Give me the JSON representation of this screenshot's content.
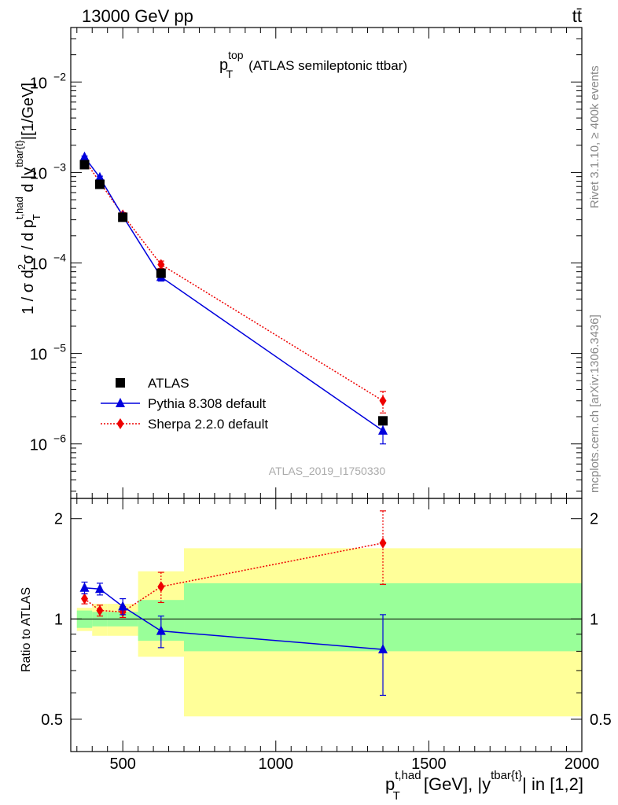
{
  "header": {
    "left": "13000 GeV pp",
    "right": "tt̄"
  },
  "plot_title": {
    "main": "p",
    "sup": "top",
    "sub": "T",
    "rest": "(ATLAS semileptonic ttbar)"
  },
  "side_labels": {
    "rivet": "Rivet 3.1.10, ≥ 400k events",
    "mcplots": "mcplots.cern.ch [arXiv:1306.3436]"
  },
  "watermark": "ATLAS_2019_I1750330",
  "y_axis_top": {
    "p1": "1 / σ d",
    "p1sup": "2",
    "p2": "σ / d p",
    "p2sup": "t,had",
    "p2sub": "T",
    "p3": " d |y",
    "p3sup": "tbar{t}",
    "p4": "|[1/GeV]"
  },
  "y_axis_bottom": "Ratio to ATLAS",
  "x_axis": {
    "p1": "p",
    "p1sup": "t,had",
    "p1sub": "T",
    "p2": " [GeV], |y",
    "p2sup": "tbar{t}",
    "p3": "| in [1,2]"
  },
  "colors": {
    "data": "#000000",
    "pythia": "#0000dd",
    "sherpa": "#ee0000",
    "band_inner": "#99ff99",
    "band_outer": "#ffff99"
  },
  "chart_data": {
    "type": "line",
    "xlim": [
      330,
      2000
    ],
    "ylim_main": [
      2.5e-07,
      0.04
    ],
    "y_scale_main": "log",
    "ylim_ratio": [
      0.4,
      2.3
    ],
    "y_scale_ratio": "log",
    "x_ticks": [
      500,
      1000,
      1500,
      2000
    ],
    "x_tick_labels": [
      "500",
      "1000",
      "1500",
      "2000"
    ],
    "y_ticks_main": [
      1e-06,
      1e-05,
      0.0001,
      0.001,
      0.01
    ],
    "y_tick_labels_main": {
      "base": [
        "10",
        "10",
        "10",
        "10",
        "10"
      ],
      "exp": [
        "−6",
        "−5",
        "−4",
        "−3",
        "−2"
      ]
    },
    "y_ticks_ratio": [
      0.5,
      1,
      2
    ],
    "y_tick_labels_ratio": [
      "0.5",
      "1",
      "2"
    ],
    "bin_edges": [
      350,
      400,
      450,
      550,
      700,
      2000
    ],
    "legend": [
      "ATLAS",
      "Pythia 8.308 default",
      "Sherpa 2.2.0 default"
    ],
    "legend_position": "lower-left",
    "series": [
      {
        "name": "ATLAS",
        "x": [
          375,
          425,
          500,
          625,
          1350
        ],
        "y": [
          0.00122,
          0.00074,
          0.00032,
          7.7e-05,
          1.8e-06
        ]
      },
      {
        "name": "Pythia 8.308 default",
        "x": [
          375,
          425,
          500,
          625,
          1350
        ],
        "y": [
          0.00148,
          0.00088,
          0.00033,
          7e-05,
          1.4e-06
        ],
        "yerr": [
          4e-05,
          3e-05,
          1e-05,
          7e-06,
          4e-07
        ]
      },
      {
        "name": "Sherpa 2.2.0 default",
        "x": [
          375,
          425,
          500,
          625,
          1350
        ],
        "y": [
          0.00138,
          0.00078,
          0.00034,
          9.6e-05,
          3e-06
        ],
        "yerr": [
          4e-05,
          3e-05,
          2e-05,
          9e-06,
          8e-07
        ]
      }
    ],
    "ratio": {
      "band_inner": [
        {
          "x0": 350,
          "x1": 400,
          "lo": 0.94,
          "hi": 1.06
        },
        {
          "x0": 400,
          "x1": 450,
          "lo": 0.95,
          "hi": 1.05
        },
        {
          "x0": 450,
          "x1": 550,
          "lo": 0.95,
          "hi": 1.05
        },
        {
          "x0": 550,
          "x1": 700,
          "lo": 0.86,
          "hi": 1.14
        },
        {
          "x0": 700,
          "x1": 2000,
          "lo": 0.8,
          "hi": 1.28
        }
      ],
      "band_outer": [
        {
          "x0": 350,
          "x1": 400,
          "lo": 0.92,
          "hi": 1.08
        },
        {
          "x0": 400,
          "x1": 450,
          "lo": 0.89,
          "hi": 1.11
        },
        {
          "x0": 450,
          "x1": 550,
          "lo": 0.89,
          "hi": 1.11
        },
        {
          "x0": 550,
          "x1": 700,
          "lo": 0.77,
          "hi": 1.39
        },
        {
          "x0": 700,
          "x1": 2000,
          "lo": 0.51,
          "hi": 1.63
        }
      ],
      "series": [
        {
          "name": "Pythia 8.308 default",
          "x": [
            375,
            425,
            500,
            625,
            1350
          ],
          "y": [
            1.24,
            1.23,
            1.09,
            0.92,
            0.81
          ],
          "yerr": [
            0.05,
            0.05,
            0.06,
            0.1,
            0.22
          ]
        },
        {
          "name": "Sherpa 2.2.0 default",
          "x": [
            375,
            425,
            500,
            625,
            1350
          ],
          "y": [
            1.15,
            1.06,
            1.05,
            1.25,
            1.69
          ],
          "yerr": [
            0.04,
            0.04,
            0.04,
            0.13,
            0.42
          ]
        }
      ]
    }
  }
}
